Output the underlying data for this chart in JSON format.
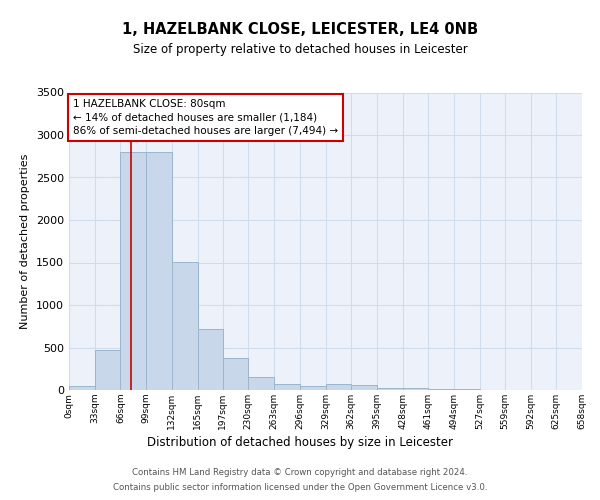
{
  "title": "1, HAZELBANK CLOSE, LEICESTER, LE4 0NB",
  "subtitle": "Size of property relative to detached houses in Leicester",
  "xlabel": "Distribution of detached houses by size in Leicester",
  "ylabel": "Number of detached properties",
  "bar_color": "#c8d8ea",
  "bar_edgecolor": "#9ab5cc",
  "grid_color": "#d0dcec",
  "background_color": "#edf2fa",
  "property_line_color": "#cc0000",
  "property_size": 80,
  "annotation_text": "1 HAZELBANK CLOSE: 80sqm\n← 14% of detached houses are smaller (1,184)\n86% of semi-detached houses are larger (7,494) →",
  "annotation_box_color": "#ffffff",
  "annotation_border_color": "#cc0000",
  "bin_edges": [
    0,
    33,
    66,
    99,
    132,
    165,
    197,
    230,
    263,
    296,
    329,
    362,
    395,
    428,
    461,
    494,
    527,
    559,
    592,
    625,
    658
  ],
  "bin_labels": [
    "0sqm",
    "33sqm",
    "66sqm",
    "99sqm",
    "132sqm",
    "165sqm",
    "197sqm",
    "230sqm",
    "263sqm",
    "296sqm",
    "329sqm",
    "362sqm",
    "395sqm",
    "428sqm",
    "461sqm",
    "494sqm",
    "527sqm",
    "559sqm",
    "592sqm",
    "625sqm",
    "658sqm"
  ],
  "bar_heights": [
    50,
    470,
    2800,
    2800,
    1510,
    720,
    380,
    155,
    70,
    45,
    75,
    55,
    20,
    20,
    15,
    10,
    5,
    3,
    2,
    1
  ],
  "ylim": [
    0,
    3500
  ],
  "yticks": [
    0,
    500,
    1000,
    1500,
    2000,
    2500,
    3000,
    3500
  ],
  "footer_line1": "Contains HM Land Registry data © Crown copyright and database right 2024.",
  "footer_line2": "Contains public sector information licensed under the Open Government Licence v3.0."
}
